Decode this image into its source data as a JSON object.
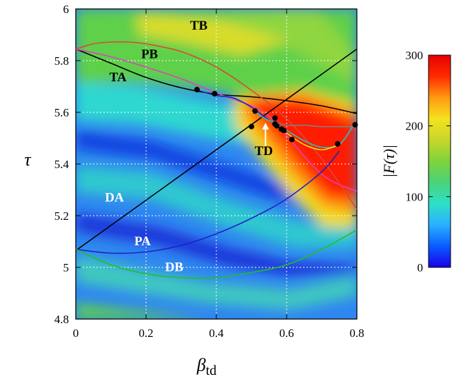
{
  "chart_data": {
    "type": "heatmap",
    "xlim": [
      0,
      0.8
    ],
    "ylim": [
      4.8,
      6.0
    ],
    "x_ticks": [
      "0",
      "0.2",
      "0.4",
      "0.6",
      "0.8"
    ],
    "y_ticks": [
      "4.8",
      "5",
      "5.2",
      "5.4",
      "5.6",
      "5.8",
      "6"
    ],
    "xlabel_main": "β",
    "xlabel_sub": "td",
    "ylabel": "τ",
    "grid": true,
    "colorbar": {
      "label": "|F(τ)|",
      "range": [
        0,
        300
      ],
      "ticks": [
        "0",
        "100",
        "200",
        "300"
      ],
      "colors": [
        "#1a00e6",
        "#0a5cff",
        "#2ab0ff",
        "#2ee0c8",
        "#4ad27a",
        "#7fd33a",
        "#c8d62a",
        "#f5e21e",
        "#ff9a10",
        "#ff2a00",
        "#e60000"
      ]
    },
    "curves": [
      {
        "label": "TA",
        "color": "#000000",
        "points": [
          [
            0,
            5.845
          ],
          [
            0.1,
            5.79
          ],
          [
            0.2,
            5.735
          ],
          [
            0.3,
            5.695
          ],
          [
            0.4,
            5.67
          ],
          [
            0.5,
            5.66
          ],
          [
            0.6,
            5.645
          ],
          [
            0.7,
            5.625
          ],
          [
            0.8,
            5.595
          ]
        ]
      },
      {
        "label": "PB",
        "color": "#e040c0",
        "points": [
          [
            0,
            5.845
          ],
          [
            0.1,
            5.815
          ],
          [
            0.2,
            5.775
          ],
          [
            0.3,
            5.73
          ],
          [
            0.4,
            5.675
          ],
          [
            0.5,
            5.625
          ],
          [
            0.55,
            5.585
          ],
          [
            0.6,
            5.51
          ],
          [
            0.65,
            5.43
          ],
          [
            0.7,
            5.36
          ],
          [
            0.75,
            5.32
          ],
          [
            0.8,
            5.295
          ]
        ]
      },
      {
        "label": "TB",
        "color": "#d84a3a",
        "points": [
          [
            0,
            5.845
          ],
          [
            0.05,
            5.865
          ],
          [
            0.1,
            5.872
          ],
          [
            0.15,
            5.872
          ],
          [
            0.2,
            5.865
          ],
          [
            0.3,
            5.835
          ],
          [
            0.4,
            5.775
          ],
          [
            0.5,
            5.685
          ],
          [
            0.6,
            5.575
          ],
          [
            0.7,
            5.42
          ],
          [
            0.8,
            5.225
          ]
        ]
      },
      {
        "label": "DA",
        "color": "#000000",
        "points": [
          [
            0,
            5.065
          ],
          [
            0.8,
            5.845
          ]
        ]
      },
      {
        "label": "PA",
        "color": "#2020c8",
        "points": [
          [
            0,
            5.07
          ],
          [
            0.1,
            5.055
          ],
          [
            0.2,
            5.06
          ],
          [
            0.3,
            5.085
          ],
          [
            0.4,
            5.13
          ],
          [
            0.5,
            5.19
          ],
          [
            0.6,
            5.265
          ],
          [
            0.7,
            5.37
          ],
          [
            0.75,
            5.45
          ]
        ]
      },
      {
        "label": "DB",
        "color": "#20c020",
        "points": [
          [
            0,
            5.07
          ],
          [
            0.1,
            5.01
          ],
          [
            0.2,
            4.975
          ],
          [
            0.3,
            4.96
          ],
          [
            0.4,
            4.96
          ],
          [
            0.5,
            4.98
          ],
          [
            0.6,
            5.01
          ],
          [
            0.7,
            5.07
          ],
          [
            0.8,
            5.145
          ]
        ]
      },
      {
        "label": "",
        "color": "#2020c8",
        "points": [
          [
            0.34,
            5.688
          ],
          [
            0.4,
            5.665
          ],
          [
            0.45,
            5.655
          ],
          [
            0.5,
            5.62
          ],
          [
            0.53,
            5.59
          ],
          [
            0.56,
            5.56
          ],
          [
            0.6,
            5.525
          ]
        ]
      },
      {
        "label": "",
        "color": "#2ec0c0",
        "points": [
          [
            0.51,
            5.6
          ],
          [
            0.54,
            5.575
          ],
          [
            0.57,
            5.555
          ],
          [
            0.6,
            5.53
          ],
          [
            0.65,
            5.49
          ],
          [
            0.7,
            5.465
          ],
          [
            0.75,
            5.475
          ],
          [
            0.79,
            5.55
          ]
        ]
      },
      {
        "label": "",
        "color": "#f0e020",
        "points": [
          [
            0.6,
            5.52
          ],
          [
            0.65,
            5.475
          ],
          [
            0.7,
            5.455
          ],
          [
            0.74,
            5.47
          ]
        ]
      },
      {
        "label": "",
        "color": "#808080",
        "points": [
          [
            0.55,
            5.57
          ],
          [
            0.6,
            5.55
          ],
          [
            0.65,
            5.55
          ],
          [
            0.7,
            5.545
          ],
          [
            0.79,
            5.545
          ]
        ]
      }
    ],
    "labels": [
      {
        "text": "TB",
        "x": 0.35,
        "y": 5.92,
        "color": "#000000"
      },
      {
        "text": "PB",
        "x": 0.21,
        "y": 5.81,
        "color": "#000000"
      },
      {
        "text": "TA",
        "x": 0.12,
        "y": 5.72,
        "color": "#000000"
      },
      {
        "text": "TD",
        "x": 0.535,
        "y": 5.435,
        "color": "#000000"
      },
      {
        "text": "DA",
        "x": 0.11,
        "y": 5.255,
        "color": "#ffffff"
      },
      {
        "text": "PA",
        "x": 0.19,
        "y": 5.085,
        "color": "#ffffff"
      },
      {
        "text": "DB",
        "x": 0.28,
        "y": 4.985,
        "color": "#ffffff"
      }
    ],
    "points": [
      [
        0.345,
        5.688
      ],
      [
        0.395,
        5.672
      ],
      [
        0.5,
        5.545
      ],
      [
        0.51,
        5.605
      ],
      [
        0.567,
        5.578
      ],
      [
        0.567,
        5.555
      ],
      [
        0.572,
        5.548
      ],
      [
        0.585,
        5.535
      ],
      [
        0.592,
        5.53
      ],
      [
        0.615,
        5.495
      ],
      [
        0.745,
        5.478
      ],
      [
        0.795,
        5.552
      ]
    ],
    "arrow": {
      "from": [
        0.54,
        5.465
      ],
      "to": [
        0.54,
        5.56
      ],
      "color": "#ffffff"
    }
  }
}
